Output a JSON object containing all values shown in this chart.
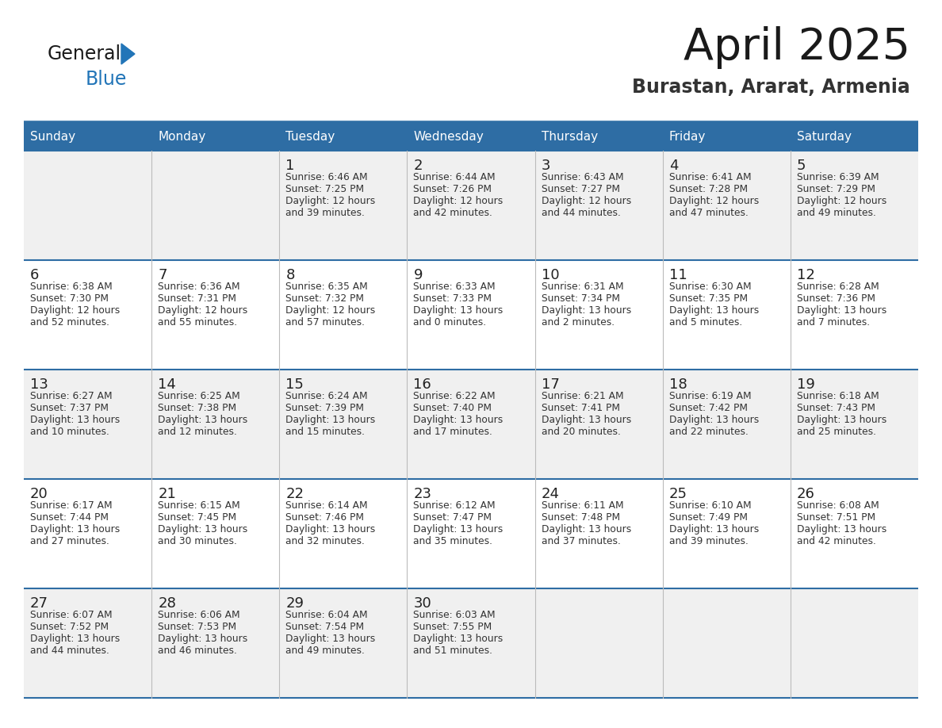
{
  "title": "April 2025",
  "subtitle": "Burastan, Ararat, Armenia",
  "header_color": "#2e6da4",
  "header_text_color": "#ffffff",
  "day_names": [
    "Sunday",
    "Monday",
    "Tuesday",
    "Wednesday",
    "Thursday",
    "Friday",
    "Saturday"
  ],
  "bg_color": "#ffffff",
  "cell_bg_light": "#f0f0f0",
  "cell_bg_white": "#ffffff",
  "day_number_color": "#222222",
  "text_color": "#333333",
  "line_color": "#2e6da4",
  "logo_general_color": "#1a1a1a",
  "logo_blue_color": "#2275b8",
  "triangle_color": "#2275b8",
  "calendar": [
    [
      {
        "day": "",
        "sunrise": "",
        "sunset": "",
        "daylight": ""
      },
      {
        "day": "",
        "sunrise": "",
        "sunset": "",
        "daylight": ""
      },
      {
        "day": "1",
        "sunrise": "6:46 AM",
        "sunset": "7:25 PM",
        "daylight": "12 hours and 39 minutes."
      },
      {
        "day": "2",
        "sunrise": "6:44 AM",
        "sunset": "7:26 PM",
        "daylight": "12 hours and 42 minutes."
      },
      {
        "day": "3",
        "sunrise": "6:43 AM",
        "sunset": "7:27 PM",
        "daylight": "12 hours and 44 minutes."
      },
      {
        "day": "4",
        "sunrise": "6:41 AM",
        "sunset": "7:28 PM",
        "daylight": "12 hours and 47 minutes."
      },
      {
        "day": "5",
        "sunrise": "6:39 AM",
        "sunset": "7:29 PM",
        "daylight": "12 hours and 49 minutes."
      }
    ],
    [
      {
        "day": "6",
        "sunrise": "6:38 AM",
        "sunset": "7:30 PM",
        "daylight": "12 hours and 52 minutes."
      },
      {
        "day": "7",
        "sunrise": "6:36 AM",
        "sunset": "7:31 PM",
        "daylight": "12 hours and 55 minutes."
      },
      {
        "day": "8",
        "sunrise": "6:35 AM",
        "sunset": "7:32 PM",
        "daylight": "12 hours and 57 minutes."
      },
      {
        "day": "9",
        "sunrise": "6:33 AM",
        "sunset": "7:33 PM",
        "daylight": "13 hours and 0 minutes."
      },
      {
        "day": "10",
        "sunrise": "6:31 AM",
        "sunset": "7:34 PM",
        "daylight": "13 hours and 2 minutes."
      },
      {
        "day": "11",
        "sunrise": "6:30 AM",
        "sunset": "7:35 PM",
        "daylight": "13 hours and 5 minutes."
      },
      {
        "day": "12",
        "sunrise": "6:28 AM",
        "sunset": "7:36 PM",
        "daylight": "13 hours and 7 minutes."
      }
    ],
    [
      {
        "day": "13",
        "sunrise": "6:27 AM",
        "sunset": "7:37 PM",
        "daylight": "13 hours and 10 minutes."
      },
      {
        "day": "14",
        "sunrise": "6:25 AM",
        "sunset": "7:38 PM",
        "daylight": "13 hours and 12 minutes."
      },
      {
        "day": "15",
        "sunrise": "6:24 AM",
        "sunset": "7:39 PM",
        "daylight": "13 hours and 15 minutes."
      },
      {
        "day": "16",
        "sunrise": "6:22 AM",
        "sunset": "7:40 PM",
        "daylight": "13 hours and 17 minutes."
      },
      {
        "day": "17",
        "sunrise": "6:21 AM",
        "sunset": "7:41 PM",
        "daylight": "13 hours and 20 minutes."
      },
      {
        "day": "18",
        "sunrise": "6:19 AM",
        "sunset": "7:42 PM",
        "daylight": "13 hours and 22 minutes."
      },
      {
        "day": "19",
        "sunrise": "6:18 AM",
        "sunset": "7:43 PM",
        "daylight": "13 hours and 25 minutes."
      }
    ],
    [
      {
        "day": "20",
        "sunrise": "6:17 AM",
        "sunset": "7:44 PM",
        "daylight": "13 hours and 27 minutes."
      },
      {
        "day": "21",
        "sunrise": "6:15 AM",
        "sunset": "7:45 PM",
        "daylight": "13 hours and 30 minutes."
      },
      {
        "day": "22",
        "sunrise": "6:14 AM",
        "sunset": "7:46 PM",
        "daylight": "13 hours and 32 minutes."
      },
      {
        "day": "23",
        "sunrise": "6:12 AM",
        "sunset": "7:47 PM",
        "daylight": "13 hours and 35 minutes."
      },
      {
        "day": "24",
        "sunrise": "6:11 AM",
        "sunset": "7:48 PM",
        "daylight": "13 hours and 37 minutes."
      },
      {
        "day": "25",
        "sunrise": "6:10 AM",
        "sunset": "7:49 PM",
        "daylight": "13 hours and 39 minutes."
      },
      {
        "day": "26",
        "sunrise": "6:08 AM",
        "sunset": "7:51 PM",
        "daylight": "13 hours and 42 minutes."
      }
    ],
    [
      {
        "day": "27",
        "sunrise": "6:07 AM",
        "sunset": "7:52 PM",
        "daylight": "13 hours and 44 minutes."
      },
      {
        "day": "28",
        "sunrise": "6:06 AM",
        "sunset": "7:53 PM",
        "daylight": "13 hours and 46 minutes."
      },
      {
        "day": "29",
        "sunrise": "6:04 AM",
        "sunset": "7:54 PM",
        "daylight": "13 hours and 49 minutes."
      },
      {
        "day": "30",
        "sunrise": "6:03 AM",
        "sunset": "7:55 PM",
        "daylight": "13 hours and 51 minutes."
      },
      {
        "day": "",
        "sunrise": "",
        "sunset": "",
        "daylight": ""
      },
      {
        "day": "",
        "sunrise": "",
        "sunset": "",
        "daylight": ""
      },
      {
        "day": "",
        "sunrise": "",
        "sunset": "",
        "daylight": ""
      }
    ]
  ]
}
